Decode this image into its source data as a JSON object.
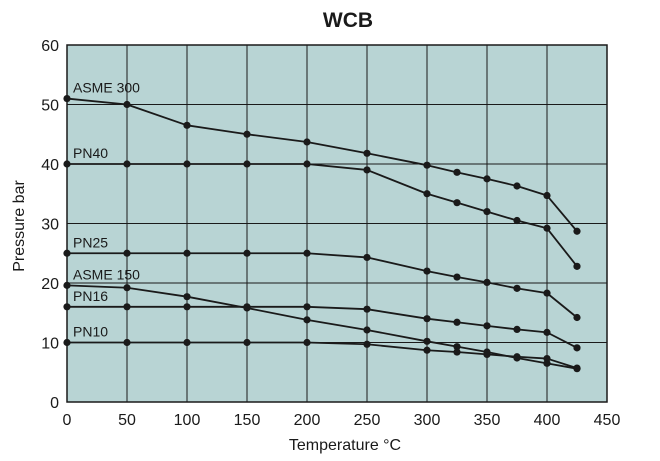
{
  "chart_data": {
    "type": "line",
    "title": "WCB",
    "xlabel": "Temperature °C",
    "ylabel": "Pressure bar",
    "xlim": [
      0,
      450
    ],
    "ylim": [
      0,
      60
    ],
    "x_ticks": [
      0,
      50,
      100,
      150,
      200,
      250,
      300,
      350,
      400,
      450
    ],
    "y_ticks": [
      0,
      10,
      20,
      30,
      40,
      50,
      60
    ],
    "grid": true,
    "legend": "none",
    "colors": {
      "plot_background": "#b8d4d4",
      "grid": "#1a1a1a",
      "line": "#1a1a1a",
      "marker": "#1a1a1a"
    },
    "series": [
      {
        "name": "ASME 300",
        "x": [
          0,
          50,
          100,
          150,
          200,
          250,
          300,
          325,
          350,
          375,
          400,
          425
        ],
        "y": [
          51,
          50,
          46.5,
          45,
          43.7,
          41.8,
          39.8,
          38.6,
          37.5,
          36.3,
          34.7,
          28.7
        ]
      },
      {
        "name": "PN40",
        "x": [
          0,
          50,
          100,
          150,
          200,
          250,
          300,
          325,
          350,
          375,
          400,
          425
        ],
        "y": [
          40,
          40,
          40,
          40,
          40,
          39,
          35,
          33.5,
          32,
          30.5,
          29.2,
          22.8
        ]
      },
      {
        "name": "PN25",
        "x": [
          0,
          50,
          100,
          150,
          200,
          250,
          300,
          325,
          350,
          375,
          400,
          425
        ],
        "y": [
          25,
          25,
          25,
          25,
          25,
          24.3,
          22,
          21,
          20.1,
          19.1,
          18.3,
          14.2
        ]
      },
      {
        "name": "ASME 150",
        "x": [
          0,
          50,
          100,
          150,
          200,
          250,
          300,
          325,
          350,
          375,
          400,
          425
        ],
        "y": [
          19.6,
          19.2,
          17.7,
          15.8,
          13.8,
          12.1,
          10.2,
          9.3,
          8.4,
          7.4,
          6.5,
          5.6
        ]
      },
      {
        "name": "PN16",
        "x": [
          0,
          50,
          100,
          150,
          200,
          250,
          300,
          325,
          350,
          375,
          400,
          425
        ],
        "y": [
          16,
          16,
          16,
          16,
          16,
          15.6,
          14,
          13.4,
          12.8,
          12.2,
          11.7,
          9.1
        ]
      },
      {
        "name": "PN10",
        "x": [
          0,
          50,
          100,
          150,
          200,
          250,
          300,
          325,
          350,
          375,
          400,
          425
        ],
        "y": [
          10,
          10,
          10,
          10,
          10,
          9.7,
          8.7,
          8.4,
          8,
          7.6,
          7.3,
          5.7
        ]
      }
    ]
  }
}
